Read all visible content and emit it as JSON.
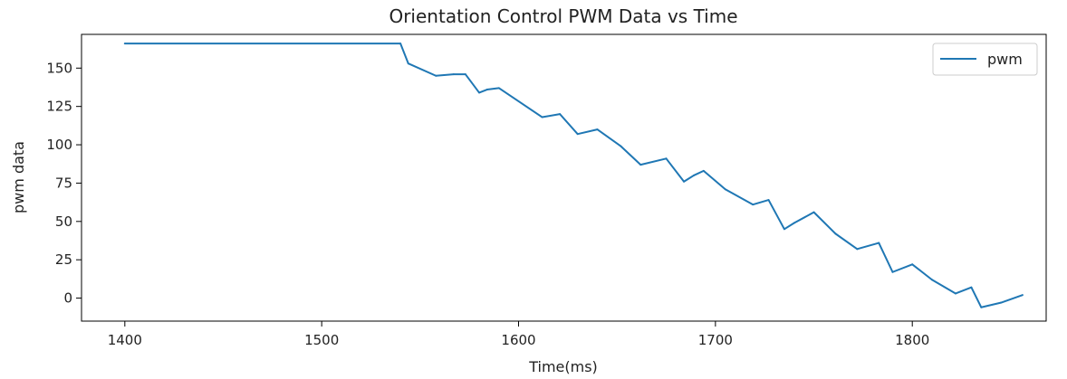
{
  "chart_data": {
    "type": "line",
    "title": "Orientation Control PWM Data vs Time",
    "xlabel": "Time(ms)",
    "ylabel": "pwm data",
    "xlim": [
      1378,
      1868
    ],
    "ylim": [
      -15,
      172
    ],
    "xticks": [
      1400,
      1500,
      1600,
      1700,
      1800
    ],
    "yticks": [
      0,
      25,
      50,
      75,
      100,
      125,
      150
    ],
    "grid": false,
    "legend_position": "top-right",
    "series": [
      {
        "name": "pwm",
        "color": "#1f77b4",
        "x": [
          1400,
          1540,
          1544,
          1558,
          1567,
          1573,
          1580,
          1584,
          1590,
          1612,
          1621,
          1630,
          1640,
          1652,
          1662,
          1675,
          1684,
          1689,
          1694,
          1705,
          1719,
          1727,
          1735,
          1740,
          1750,
          1761,
          1772,
          1783,
          1790,
          1800,
          1810,
          1822,
          1830,
          1835,
          1845,
          1856
        ],
        "y": [
          166,
          166,
          153,
          145,
          146,
          146,
          134,
          136,
          137,
          118,
          120,
          107,
          110,
          99,
          87,
          91,
          76,
          80,
          83,
          71,
          61,
          64,
          45,
          49,
          56,
          42,
          32,
          36,
          17,
          22,
          12,
          3,
          7,
          -6,
          -3,
          2
        ]
      }
    ]
  }
}
